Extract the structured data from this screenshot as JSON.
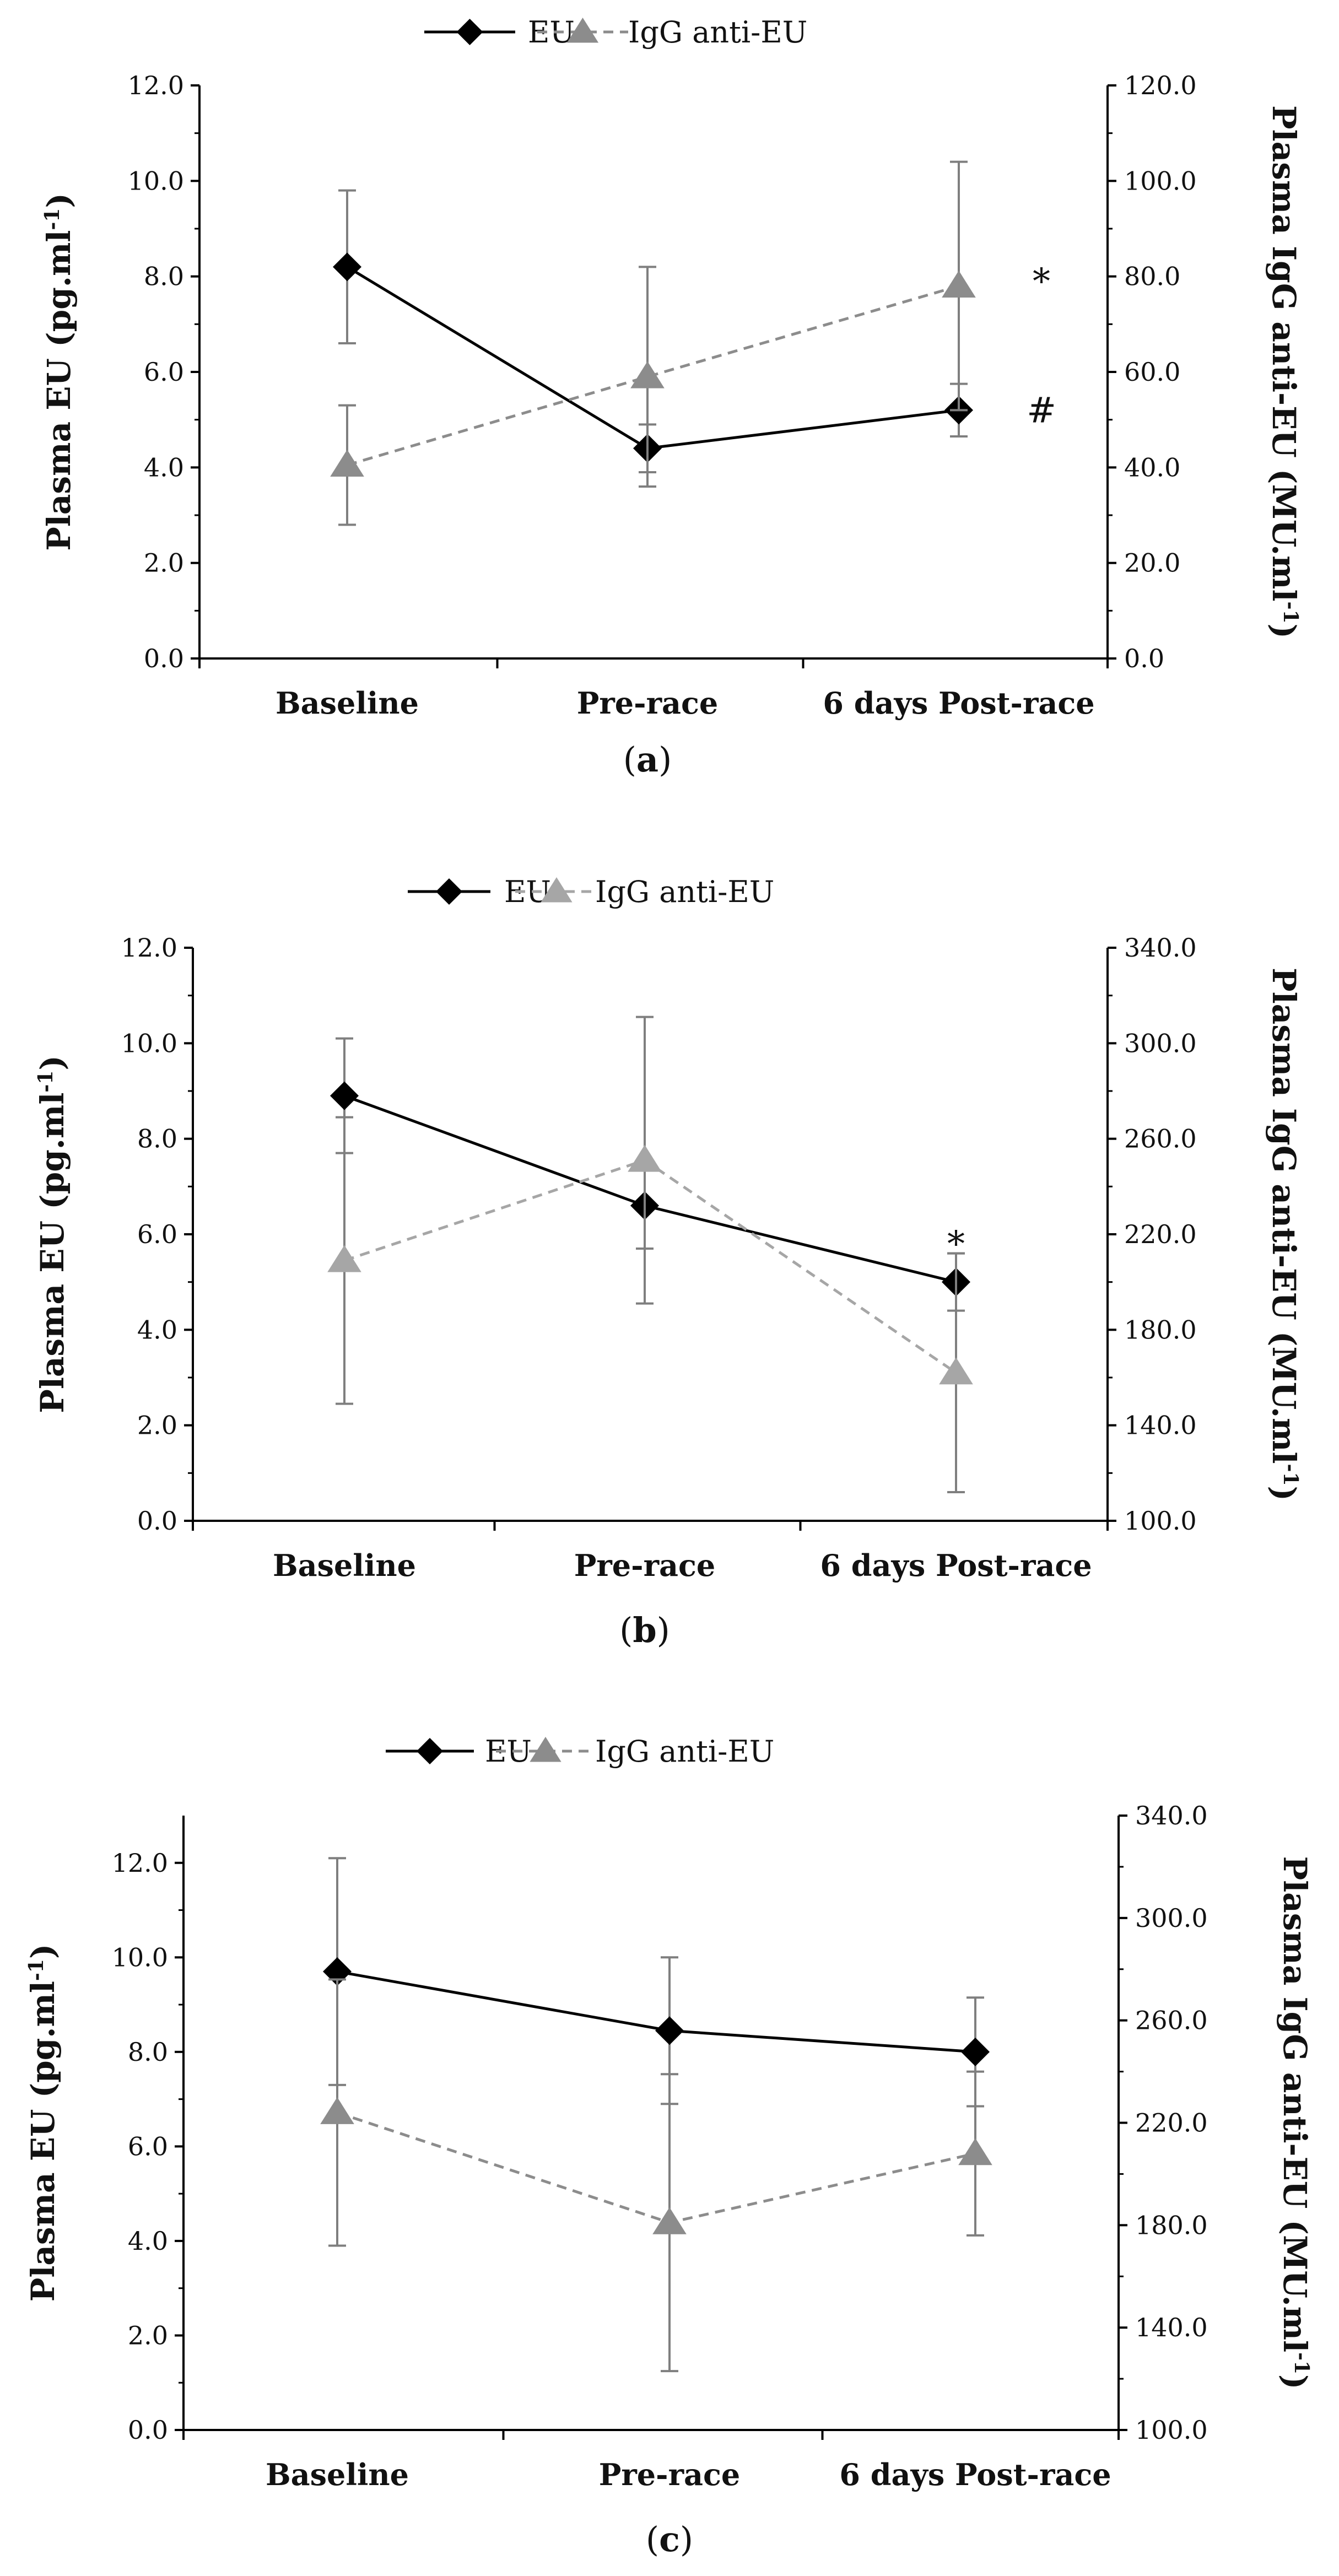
{
  "chart_data": [
    {
      "type": "line",
      "panel_label": "a",
      "categories": [
        "Baseline",
        "Pre-race",
        "6 days Post-race"
      ],
      "series": [
        {
          "name": "EU",
          "axis": "left",
          "style": "solid",
          "marker": "diamond",
          "color": "#000000",
          "values": [
            8.2,
            4.4,
            5.2
          ],
          "error": [
            1.6,
            0.5,
            0.55
          ]
        },
        {
          "name": "IgG anti-EU",
          "axis": "right",
          "style": "dashed",
          "marker": "triangle",
          "color": "#8c8c8c",
          "values": [
            40.5,
            59.0,
            78.0
          ],
          "error": [
            12.5,
            23.0,
            26.0
          ]
        }
      ],
      "ylabel": "Plasma EU (pg.ml-1)",
      "ylabel_main": "Plasma EU (pg.ml",
      "ylabel_sup": "-1",
      "ylabel_close": ")",
      "y2label": "Plasma IgG anti-EU (MU.ml-1)",
      "y2label_main": "Plasma IgG anti-EU (MU.ml",
      "y2label_sup": "-1",
      "y2label_close": ")",
      "ylim": [
        0,
        12
      ],
      "y2lim": [
        0,
        120
      ],
      "yticks": [
        "0.0",
        "2.0",
        "4.0",
        "6.0",
        "8.0",
        "10.0",
        "12.0"
      ],
      "y2ticks": [
        "0.0",
        "20.0",
        "40.0",
        "60.0",
        "80.0",
        "100.0",
        "120.0"
      ],
      "annotations": [
        {
          "text": "*",
          "category": "6 days Post-race",
          "axis": "left",
          "y": 7.9
        },
        {
          "text": "#",
          "category": "6 days Post-race",
          "axis": "left",
          "y": 5.2
        }
      ],
      "legend": [
        "EU",
        "IgG anti-EU"
      ]
    },
    {
      "type": "line",
      "panel_label": "b",
      "categories": [
        "Baseline",
        "Pre-race",
        "6 days Post-race"
      ],
      "series": [
        {
          "name": "EU",
          "axis": "left",
          "style": "solid",
          "marker": "diamond",
          "color": "#000000",
          "values": [
            8.9,
            6.6,
            5.0
          ],
          "error": [
            1.2,
            0.9,
            0.6
          ]
        },
        {
          "name": "IgG anti-EU",
          "axis": "right",
          "style": "dashed",
          "marker": "triangle",
          "color": "#a6a6a6",
          "values": [
            209.0,
            251.0,
            162.0
          ],
          "error": [
            60.0,
            60.0,
            50.0
          ]
        }
      ],
      "ylabel": "Plasma EU (pg.ml-1)",
      "ylabel_main": "Plasma EU (pg.ml",
      "ylabel_sup": "-1",
      "ylabel_close": ")",
      "y2label": "Plasma IgG anti-EU (MU.ml-1)",
      "y2label_main": "Plasma IgG anti-EU (MU.ml",
      "y2label_sup": "-1",
      "y2label_close": ")",
      "ylim": [
        0,
        12
      ],
      "y2lim": [
        100,
        340
      ],
      "yticks": [
        "0.0",
        "2.0",
        "4.0",
        "6.0",
        "8.0",
        "10.0",
        "12.0"
      ],
      "y2ticks": [
        "100.0",
        "140.0",
        "180.0",
        "220.0",
        "260.0",
        "300.0",
        "340.0"
      ],
      "annotations": [
        {
          "text": "*",
          "category": "6 days Post-race",
          "axis": "left",
          "y": 5.8
        }
      ],
      "legend": [
        "EU",
        "IgG anti-EU"
      ]
    },
    {
      "type": "line",
      "panel_label": "c",
      "categories": [
        "Baseline",
        "Pre-race",
        "6 days Post-race"
      ],
      "series": [
        {
          "name": "EU",
          "axis": "left",
          "style": "solid",
          "marker": "diamond",
          "color": "#000000",
          "values": [
            9.7,
            8.45,
            8.0
          ],
          "error": [
            2.4,
            1.55,
            1.15
          ]
        },
        {
          "name": "IgG anti-EU",
          "axis": "right",
          "style": "dashed",
          "marker": "triangle",
          "color": "#8c8c8c",
          "values": [
            224.0,
            181.0,
            208.0
          ],
          "error": [
            52.0,
            58.0,
            32.0
          ]
        }
      ],
      "ylabel": "Plasma EU (pg.ml-1)",
      "ylabel_main": "Plasma EU (pg.ml",
      "ylabel_sup": "-1",
      "ylabel_close": ")",
      "y2label": "Plasma IgG anti-EU (MU.ml-1)",
      "y2label_main": "Plasma IgG anti-EU (MU.ml",
      "y2label_sup": "-1",
      "y2label_close": ")",
      "ylim": [
        0,
        13
      ],
      "y2lim": [
        100,
        340
      ],
      "yticks": [
        "0.0",
        "2.0",
        "4.0",
        "6.0",
        "8.0",
        "10.0",
        "12.0"
      ],
      "y2ticks": [
        "100.0",
        "140.0",
        "180.0",
        "220.0",
        "260.0",
        "300.0",
        "340.0"
      ],
      "annotations": [],
      "legend": [
        "EU",
        "IgG anti-EU"
      ]
    }
  ]
}
